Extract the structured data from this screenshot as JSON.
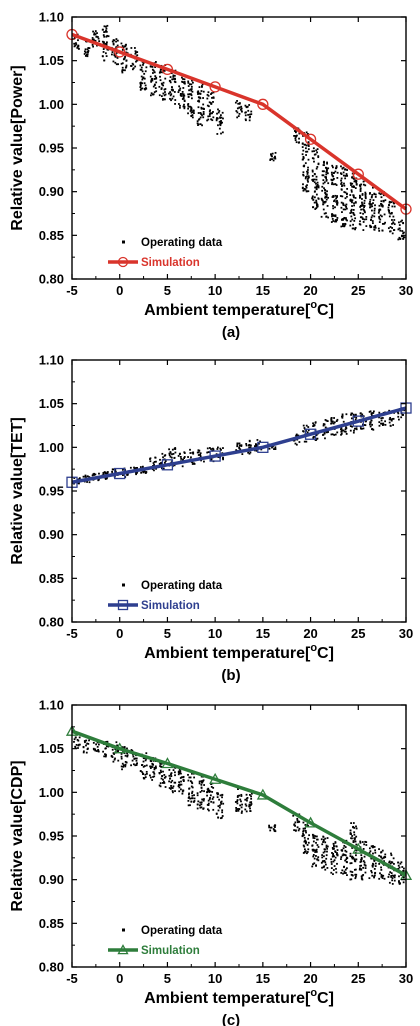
{
  "chart_data": [
    {
      "type": "scatter",
      "panel_label": "(a)",
      "xlabel_main": "Ambient temperature[",
      "xlabel_sup": "o",
      "xlabel_end": "C]",
      "ylabel": "Relative value[Power]",
      "xlim": [
        -5,
        30
      ],
      "ylim": [
        0.8,
        1.1
      ],
      "xticks": [
        -5,
        0,
        5,
        10,
        15,
        20,
        25,
        30
      ],
      "yticks": [
        0.8,
        0.85,
        0.9,
        0.95,
        1.0,
        1.05,
        1.1
      ],
      "ytick_labels": [
        "0.80",
        "0.85",
        "0.90",
        "0.95",
        "1.00",
        "1.05",
        "1.10"
      ],
      "legend": [
        "Operating data",
        "Simulation"
      ],
      "sim_color": "#d9342b",
      "sim_marker": "circle",
      "simulation": {
        "x": [
          -5,
          0,
          5,
          10,
          15,
          20,
          25,
          30
        ],
        "y": [
          1.08,
          1.06,
          1.04,
          1.02,
          1.0,
          0.96,
          0.92,
          0.88
        ]
      },
      "operating_clusters": [
        {
          "x": -4.5,
          "ymin": 1.06,
          "ymax": 1.08
        },
        {
          "x": -3.5,
          "ymin": 1.055,
          "ymax": 1.075
        },
        {
          "x": -2.5,
          "ymin": 1.06,
          "ymax": 1.085
        },
        {
          "x": -1.5,
          "ymin": 1.05,
          "ymax": 1.09
        },
        {
          "x": -0.5,
          "ymin": 1.045,
          "ymax": 1.075
        },
        {
          "x": 0.5,
          "ymin": 1.035,
          "ymax": 1.07
        },
        {
          "x": 1.5,
          "ymin": 1.04,
          "ymax": 1.065
        },
        {
          "x": 2.5,
          "ymin": 1.015,
          "ymax": 1.05
        },
        {
          "x": 3.5,
          "ymin": 1.01,
          "ymax": 1.05
        },
        {
          "x": 4.5,
          "ymin": 1.005,
          "ymax": 1.045
        },
        {
          "x": 5.5,
          "ymin": 1.0,
          "ymax": 1.04
        },
        {
          "x": 6.5,
          "ymin": 0.995,
          "ymax": 1.035
        },
        {
          "x": 7.5,
          "ymin": 0.985,
          "ymax": 1.03
        },
        {
          "x": 8.5,
          "ymin": 0.975,
          "ymax": 1.025
        },
        {
          "x": 9.5,
          "ymin": 0.98,
          "ymax": 1.015
        },
        {
          "x": 10.5,
          "ymin": 0.965,
          "ymax": 0.995
        },
        {
          "x": 12.5,
          "ymin": 0.985,
          "ymax": 1.005
        },
        {
          "x": 13.5,
          "ymin": 0.98,
          "ymax": 1.0
        },
        {
          "x": 16,
          "ymin": 0.935,
          "ymax": 0.945
        },
        {
          "x": 18.5,
          "ymin": 0.955,
          "ymax": 0.975
        },
        {
          "x": 19.5,
          "ymin": 0.9,
          "ymax": 0.97
        },
        {
          "x": 20.5,
          "ymin": 0.88,
          "ymax": 0.95
        },
        {
          "x": 21.5,
          "ymin": 0.87,
          "ymax": 0.94
        },
        {
          "x": 22.5,
          "ymin": 0.865,
          "ymax": 0.93
        },
        {
          "x": 23.5,
          "ymin": 0.86,
          "ymax": 0.93
        },
        {
          "x": 24.5,
          "ymin": 0.855,
          "ymax": 0.925
        },
        {
          "x": 25.5,
          "ymin": 0.855,
          "ymax": 0.915
        },
        {
          "x": 26.5,
          "ymin": 0.855,
          "ymax": 0.905
        },
        {
          "x": 27.5,
          "ymin": 0.855,
          "ymax": 0.9
        },
        {
          "x": 28.5,
          "ymin": 0.85,
          "ymax": 0.89
        },
        {
          "x": 29.5,
          "ymin": 0.845,
          "ymax": 0.87
        }
      ]
    },
    {
      "type": "scatter",
      "panel_label": "(b)",
      "xlabel_main": "Ambient temperature[",
      "xlabel_sup": "o",
      "xlabel_end": "C]",
      "ylabel": "Relative value[TET]",
      "xlim": [
        -5,
        30
      ],
      "ylim": [
        0.8,
        1.1
      ],
      "xticks": [
        -5,
        0,
        5,
        10,
        15,
        20,
        25,
        30
      ],
      "yticks": [
        0.8,
        0.85,
        0.9,
        0.95,
        1.0,
        1.05,
        1.1
      ],
      "ytick_labels": [
        "0.80",
        "0.85",
        "0.90",
        "0.95",
        "1.00",
        "1.05",
        "1.10"
      ],
      "legend": [
        "Operating data",
        "Simulation"
      ],
      "sim_color": "#2e3f8f",
      "sim_marker": "square",
      "simulation": {
        "x": [
          -5,
          0,
          5,
          10,
          15,
          20,
          25,
          30
        ],
        "y": [
          0.96,
          0.97,
          0.98,
          0.99,
          1.0,
          1.015,
          1.03,
          1.045
        ]
      },
      "operating_clusters": [
        {
          "x": -4.5,
          "ymin": 0.958,
          "ymax": 0.965
        },
        {
          "x": -3.5,
          "ymin": 0.96,
          "ymax": 0.968
        },
        {
          "x": -2.5,
          "ymin": 0.962,
          "ymax": 0.97
        },
        {
          "x": -1.5,
          "ymin": 0.963,
          "ymax": 0.972
        },
        {
          "x": -0.5,
          "ymin": 0.965,
          "ymax": 0.975
        },
        {
          "x": 0.5,
          "ymin": 0.966,
          "ymax": 0.976
        },
        {
          "x": 1.5,
          "ymin": 0.968,
          "ymax": 0.978
        },
        {
          "x": 2.5,
          "ymin": 0.97,
          "ymax": 0.98
        },
        {
          "x": 3.5,
          "ymin": 0.972,
          "ymax": 0.99
        },
        {
          "x": 4.5,
          "ymin": 0.974,
          "ymax": 0.993
        },
        {
          "x": 5.5,
          "ymin": 0.976,
          "ymax": 1.0
        },
        {
          "x": 6.5,
          "ymin": 0.978,
          "ymax": 0.995
        },
        {
          "x": 7.5,
          "ymin": 0.98,
          "ymax": 0.998
        },
        {
          "x": 8.5,
          "ymin": 0.982,
          "ymax": 0.998
        },
        {
          "x": 9.5,
          "ymin": 0.984,
          "ymax": 1.0
        },
        {
          "x": 10.5,
          "ymin": 0.986,
          "ymax": 1.0
        },
        {
          "x": 12.5,
          "ymin": 0.99,
          "ymax": 1.005
        },
        {
          "x": 13.5,
          "ymin": 0.992,
          "ymax": 1.008
        },
        {
          "x": 14.5,
          "ymin": 0.995,
          "ymax": 1.01
        },
        {
          "x": 16,
          "ymin": 0.998,
          "ymax": 1.005
        },
        {
          "x": 18.5,
          "ymin": 1.003,
          "ymax": 1.015
        },
        {
          "x": 19.5,
          "ymin": 1.005,
          "ymax": 1.025
        },
        {
          "x": 20.5,
          "ymin": 1.008,
          "ymax": 1.03
        },
        {
          "x": 21.5,
          "ymin": 1.01,
          "ymax": 1.032
        },
        {
          "x": 22.5,
          "ymin": 1.012,
          "ymax": 1.035
        },
        {
          "x": 23.5,
          "ymin": 1.014,
          "ymax": 1.038
        },
        {
          "x": 24.5,
          "ymin": 1.016,
          "ymax": 1.04
        },
        {
          "x": 25.5,
          "ymin": 1.018,
          "ymax": 1.04
        },
        {
          "x": 26.5,
          "ymin": 1.02,
          "ymax": 1.042
        },
        {
          "x": 27.5,
          "ymin": 1.022,
          "ymax": 1.042
        },
        {
          "x": 28.5,
          "ymin": 1.024,
          "ymax": 1.043
        },
        {
          "x": 29.5,
          "ymin": 1.03,
          "ymax": 1.045
        }
      ]
    },
    {
      "type": "scatter",
      "panel_label": "(c)",
      "xlabel_main": "Ambient temperature[",
      "xlabel_sup": "o",
      "xlabel_end": "C]",
      "ylabel": "Relative value[CDP]",
      "xlim": [
        -5,
        30
      ],
      "ylim": [
        0.8,
        1.1
      ],
      "xticks": [
        -5,
        0,
        5,
        10,
        15,
        20,
        25,
        30
      ],
      "yticks": [
        0.8,
        0.85,
        0.9,
        0.95,
        1.0,
        1.05,
        1.1
      ],
      "ytick_labels": [
        "0.80",
        "0.85",
        "0.90",
        "0.95",
        "1.00",
        "1.05",
        "1.10"
      ],
      "legend": [
        "Operating data",
        "Simulation"
      ],
      "sim_color": "#2e7d3b",
      "sim_marker": "triangle",
      "simulation": {
        "x": [
          -5,
          0,
          5,
          10,
          15,
          20,
          25,
          30
        ],
        "y": [
          1.07,
          1.05,
          1.033,
          1.015,
          0.997,
          0.965,
          0.935,
          0.905
        ]
      },
      "operating_clusters": [
        {
          "x": -4.5,
          "ymin": 1.05,
          "ymax": 1.065
        },
        {
          "x": -3.5,
          "ymin": 1.045,
          "ymax": 1.06
        },
        {
          "x": -2.5,
          "ymin": 1.045,
          "ymax": 1.06
        },
        {
          "x": -1.5,
          "ymin": 1.04,
          "ymax": 1.058
        },
        {
          "x": -0.5,
          "ymin": 1.035,
          "ymax": 1.058
        },
        {
          "x": 0.5,
          "ymin": 1.025,
          "ymax": 1.052
        },
        {
          "x": 1.5,
          "ymin": 1.03,
          "ymax": 1.05
        },
        {
          "x": 2.5,
          "ymin": 1.015,
          "ymax": 1.045
        },
        {
          "x": 3.5,
          "ymin": 1.01,
          "ymax": 1.04
        },
        {
          "x": 4.5,
          "ymin": 1.005,
          "ymax": 1.035
        },
        {
          "x": 5.5,
          "ymin": 1.0,
          "ymax": 1.03
        },
        {
          "x": 6.5,
          "ymin": 0.995,
          "ymax": 1.028
        },
        {
          "x": 7.5,
          "ymin": 0.985,
          "ymax": 1.025
        },
        {
          "x": 8.5,
          "ymin": 0.98,
          "ymax": 1.02
        },
        {
          "x": 9.5,
          "ymin": 0.978,
          "ymax": 1.012
        },
        {
          "x": 10.5,
          "ymin": 0.97,
          "ymax": 1.0
        },
        {
          "x": 12.5,
          "ymin": 0.975,
          "ymax": 1.005
        },
        {
          "x": 13.5,
          "ymin": 0.975,
          "ymax": 1.0
        },
        {
          "x": 16,
          "ymin": 0.955,
          "ymax": 0.965
        },
        {
          "x": 18.5,
          "ymin": 0.955,
          "ymax": 0.975
        },
        {
          "x": 19.5,
          "ymin": 0.93,
          "ymax": 0.97
        },
        {
          "x": 20.5,
          "ymin": 0.915,
          "ymax": 0.955
        },
        {
          "x": 21.5,
          "ymin": 0.91,
          "ymax": 0.95
        },
        {
          "x": 22.5,
          "ymin": 0.905,
          "ymax": 0.945
        },
        {
          "x": 23.5,
          "ymin": 0.905,
          "ymax": 0.945
        },
        {
          "x": 24.5,
          "ymin": 0.9,
          "ymax": 0.965
        },
        {
          "x": 25.5,
          "ymin": 0.9,
          "ymax": 0.945
        },
        {
          "x": 26.5,
          "ymin": 0.9,
          "ymax": 0.94
        },
        {
          "x": 27.5,
          "ymin": 0.9,
          "ymax": 0.935
        },
        {
          "x": 28.5,
          "ymin": 0.895,
          "ymax": 0.93
        },
        {
          "x": 29.5,
          "ymin": 0.895,
          "ymax": 0.92
        }
      ]
    }
  ]
}
